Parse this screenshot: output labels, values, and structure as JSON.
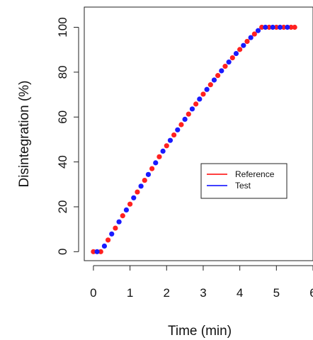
{
  "chart_data": {
    "type": "scatter",
    "xlabel": "Time (min)",
    "ylabel": "Disintegration (%)",
    "xlim": [
      -0.25,
      6.0
    ],
    "ylim": [
      -4,
      109
    ],
    "x_ticks": [
      "0",
      "1",
      "2",
      "3",
      "4",
      "5",
      "6"
    ],
    "y_ticks": [
      "0",
      "20",
      "40",
      "60",
      "80",
      "100"
    ],
    "grid": false,
    "legend_position": "center-right",
    "series": [
      {
        "name": "Reference",
        "color": "#ff2020",
        "legend_color": "#ff0000",
        "points": [
          [
            0.0,
            0.0
          ],
          [
            0.2,
            0.0
          ],
          [
            0.4,
            5.2
          ],
          [
            0.6,
            10.5
          ],
          [
            0.8,
            16.0
          ],
          [
            1.0,
            21.2
          ],
          [
            1.2,
            26.6
          ],
          [
            1.4,
            31.8
          ],
          [
            1.6,
            37.0
          ],
          [
            1.8,
            42.3
          ],
          [
            2.0,
            47.2
          ],
          [
            2.2,
            52.0
          ],
          [
            2.4,
            56.6
          ],
          [
            2.6,
            61.3
          ],
          [
            2.8,
            65.8
          ],
          [
            3.0,
            70.2
          ],
          [
            3.2,
            74.4
          ],
          [
            3.4,
            78.5
          ],
          [
            3.6,
            82.6
          ],
          [
            3.8,
            86.4
          ],
          [
            4.0,
            90.1
          ],
          [
            4.2,
            93.7
          ],
          [
            4.4,
            97.0
          ],
          [
            4.6,
            100.0
          ],
          [
            4.8,
            100.0
          ],
          [
            5.0,
            100.0
          ],
          [
            5.2,
            100.0
          ],
          [
            5.4,
            100.0
          ],
          [
            5.5,
            100.0
          ]
        ]
      },
      {
        "name": "Test",
        "color": "#1a1aff",
        "legend_color": "#0000ff",
        "points": [
          [
            0.1,
            0.0
          ],
          [
            0.3,
            2.5
          ],
          [
            0.5,
            7.9
          ],
          [
            0.7,
            13.3
          ],
          [
            0.9,
            18.6
          ],
          [
            1.1,
            24.0
          ],
          [
            1.3,
            29.2
          ],
          [
            1.5,
            34.4
          ],
          [
            1.7,
            39.6
          ],
          [
            1.9,
            44.8
          ],
          [
            2.1,
            49.6
          ],
          [
            2.3,
            54.3
          ],
          [
            2.5,
            59.0
          ],
          [
            2.7,
            63.6
          ],
          [
            2.9,
            68.0
          ],
          [
            3.1,
            72.3
          ],
          [
            3.3,
            76.5
          ],
          [
            3.5,
            80.6
          ],
          [
            3.7,
            84.5
          ],
          [
            3.9,
            88.3
          ],
          [
            4.1,
            91.9
          ],
          [
            4.3,
            95.4
          ],
          [
            4.5,
            98.5
          ],
          [
            4.7,
            100.0
          ],
          [
            4.9,
            100.0
          ],
          [
            5.1,
            100.0
          ],
          [
            5.3,
            100.0
          ]
        ]
      }
    ]
  }
}
